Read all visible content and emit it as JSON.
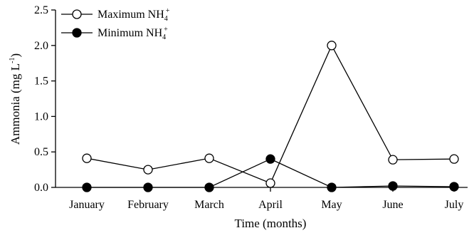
{
  "chart_data": {
    "type": "line",
    "categories": [
      "January",
      "February",
      "March",
      "April",
      "May",
      "June",
      "July"
    ],
    "series": [
      {
        "name": "Maximum NH4+",
        "label": "Maximum NH",
        "label_sub": "4",
        "label_sup": "+",
        "marker": "open-circle",
        "color": "#000000",
        "values": [
          0.41,
          0.25,
          0.41,
          0.06,
          2.0,
          0.39,
          0.4
        ]
      },
      {
        "name": "Minimum NH4+",
        "label": "Minimum NH",
        "label_sub": "4",
        "label_sup": "+",
        "marker": "filled-circle",
        "color": "#000000",
        "values": [
          0.0,
          0.0,
          0.0,
          0.4,
          0.0,
          0.02,
          0.01
        ]
      }
    ],
    "xlabel": "Time (months)",
    "ylabel": "Ammonia (mg L",
    "ylabel_sup": "-1",
    "ylabel_suffix": ")",
    "ylim": [
      0,
      2.5
    ],
    "yticks": [
      "0.0",
      "0.5",
      "1.0",
      "1.5",
      "2.0",
      "2.5"
    ],
    "grid": false,
    "legend": "top-left"
  }
}
